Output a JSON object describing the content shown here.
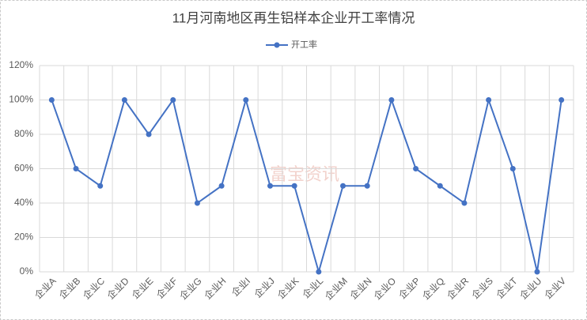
{
  "chart_data": {
    "type": "line",
    "title": "11月河南地区再生铝样本企业开工率情况",
    "watermark": "富宝资讯",
    "categories": [
      "企业A",
      "企业B",
      "企业C",
      "企业D",
      "企业E",
      "企业F",
      "企业G",
      "企业H",
      "企业I",
      "企业J",
      "企业K",
      "企业L",
      "企业M",
      "企业N",
      "企业O",
      "企业P",
      "企业Q",
      "企业R",
      "企业S",
      "企业T",
      "企业U",
      "企业V"
    ],
    "series": [
      {
        "name": "开工率",
        "color": "#4472c4",
        "values": [
          100,
          60,
          50,
          100,
          80,
          100,
          40,
          50,
          100,
          50,
          50,
          0,
          50,
          50,
          100,
          60,
          50,
          40,
          100,
          60,
          0,
          100
        ]
      }
    ],
    "ylim": [
      0,
      120
    ],
    "yticks": [
      {
        "value": 0,
        "label": "0%"
      },
      {
        "value": 20,
        "label": "20%"
      },
      {
        "value": 40,
        "label": "40%"
      },
      {
        "value": 60,
        "label": "60%"
      },
      {
        "value": 80,
        "label": "80%"
      },
      {
        "value": 100,
        "label": "100%"
      },
      {
        "value": 120,
        "label": "120%"
      }
    ],
    "grid": true,
    "legend": "top"
  }
}
